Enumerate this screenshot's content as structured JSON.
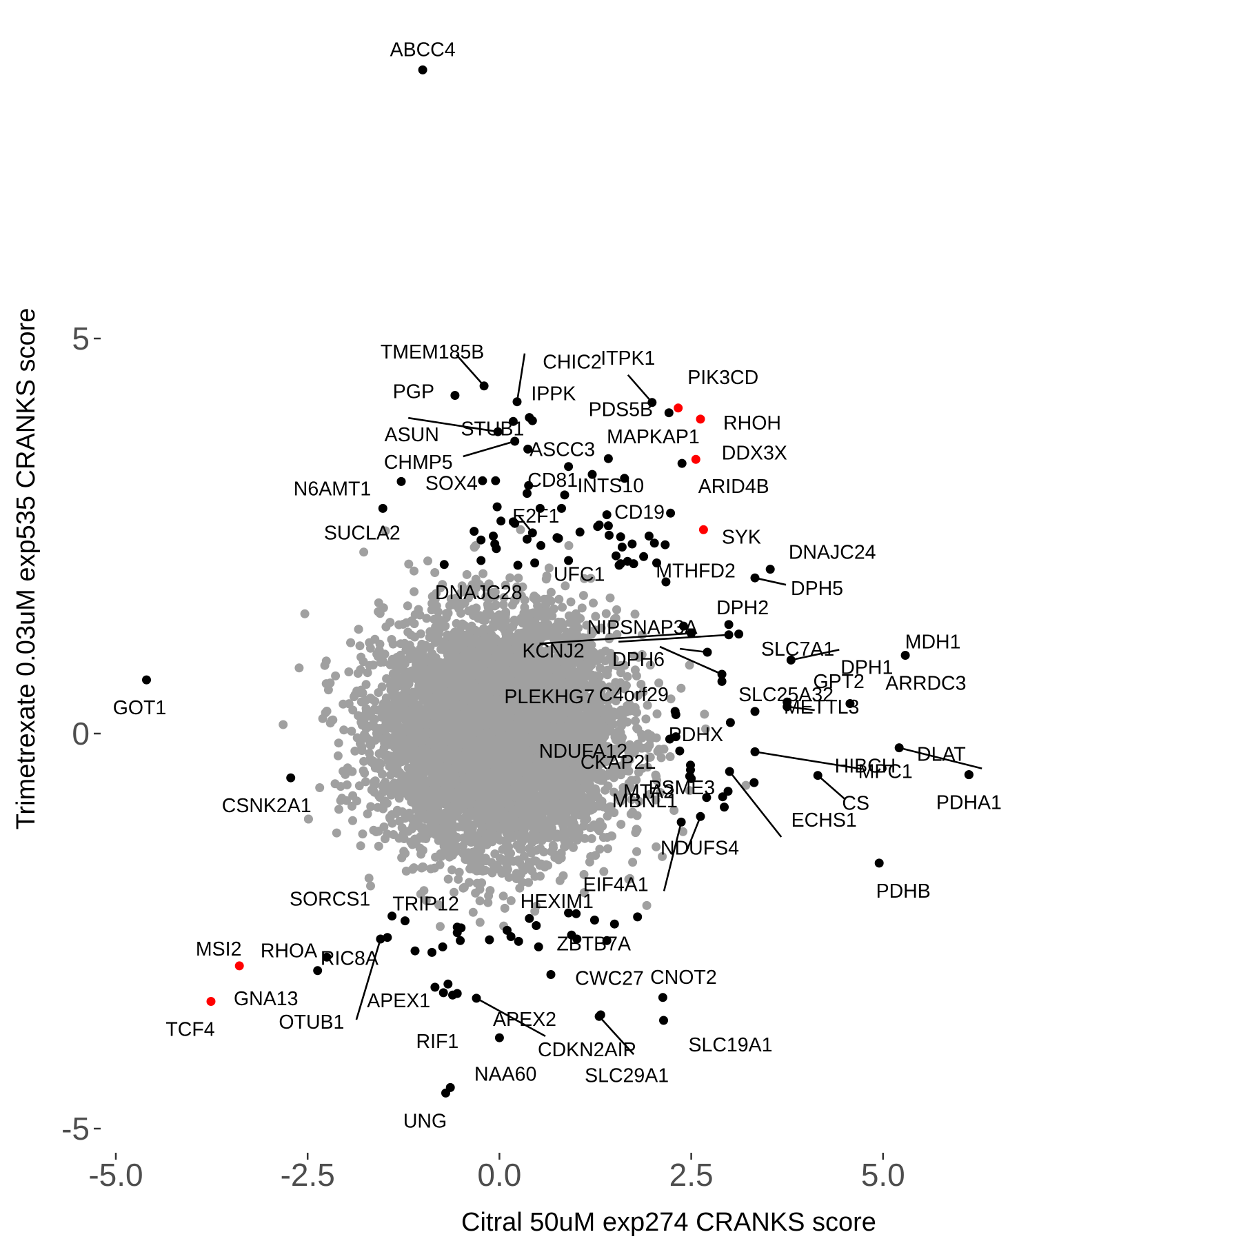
{
  "chart_data": {
    "type": "scatter",
    "xlabel": "Citral 50uM exp274 CRANKS score",
    "ylabel": "Trimetrexate 0.03uM exp535 CRANKS score",
    "xlim": [
      -5.0,
      6.2
    ],
    "ylim": [
      -5.0,
      8.4
    ],
    "x_ticks": [
      -5.0,
      -2.5,
      0.0,
      2.5,
      5.0
    ],
    "x_tick_labels": [
      "-5.0",
      "-2.5",
      "0.0",
      "2.5",
      "5.0"
    ],
    "y_ticks": [
      -5,
      0,
      5
    ],
    "y_tick_labels": [
      "-5",
      "0",
      "5"
    ],
    "grid": false,
    "colors": {
      "background_points": "#a0a0a0",
      "labeled_points": "#000000",
      "highlight_points": "#ff0000",
      "tick_text": "#4d4d4d"
    },
    "background_cloud": {
      "n_points": 7000,
      "center": [
        0.0,
        0.0
      ],
      "note_free": true
    },
    "series": [
      {
        "color": "#000000",
        "points": [
          {
            "label": "ABCC4",
            "x": -1.0,
            "y": 8.4
          },
          {
            "label": "TMEM185B",
            "x": -0.2,
            "y": 4.4
          },
          {
            "label": "CHIC2",
            "x": 0.23,
            "y": 4.2
          },
          {
            "label": "PGP",
            "x": -0.58,
            "y": 4.28
          },
          {
            "label": "IPPK",
            "x": 0.39,
            "y": 4.0
          },
          {
            "label": "ASUN",
            "x": -0.02,
            "y": 3.82
          },
          {
            "label": "STUB1",
            "x": 0.18,
            "y": 3.95
          },
          {
            "label": "CHMP5",
            "x": 0.2,
            "y": 3.7
          },
          {
            "label": "ITPK1",
            "x": 1.99,
            "y": 4.19
          },
          {
            "label": "PDS5B",
            "x": 2.21,
            "y": 4.06
          },
          {
            "label": "ASCC3",
            "x": 0.37,
            "y": 3.6
          },
          {
            "label": "MAPKAP1",
            "x": 1.42,
            "y": 3.48
          },
          {
            "label": "ARID4B",
            "x": 2.38,
            "y": 3.42
          },
          {
            "label": "N6AMT1",
            "x": -1.28,
            "y": 3.19
          },
          {
            "label": "SUCLA2",
            "x": -1.52,
            "y": 2.85
          },
          {
            "label": "CD81",
            "x": 0.38,
            "y": 3.14
          },
          {
            "label": "INTS10",
            "x": 1.63,
            "y": 3.23
          },
          {
            "label": "SOX4",
            "x": -0.22,
            "y": 3.2
          },
          {
            "label": "E2F1",
            "x": 0.43,
            "y": 2.54
          },
          {
            "label": "CD19",
            "x": 2.23,
            "y": 2.79
          },
          {
            "label": "UFC1",
            "x": 1.58,
            "y": 2.15
          },
          {
            "label": "MTHFD2",
            "x": 1.75,
            "y": 2.15
          },
          {
            "label": "DNAJC28",
            "x": -0.72,
            "y": 2.14
          },
          {
            "label": "DNAJC24",
            "x": 3.53,
            "y": 2.08
          },
          {
            "label": "DPH5",
            "x": 3.33,
            "y": 1.97
          },
          {
            "label": "DPH2",
            "x": 2.99,
            "y": 1.38
          },
          {
            "label": "NIPSNAP3A",
            "x": 3.12,
            "y": 1.26
          },
          {
            "label": "KCNJ2",
            "x": 2.5,
            "y": 1.27
          },
          {
            "label": "DPH6",
            "x": 2.71,
            "y": 1.03
          },
          {
            "label": "SLC7A1",
            "x": 2.99,
            "y": 1.25
          },
          {
            "label": "DPH1",
            "x": 3.8,
            "y": 0.93
          },
          {
            "label": "MDH1",
            "x": 5.29,
            "y": 0.99
          },
          {
            "label": "PLEKHG7",
            "x": 2.9,
            "y": 0.75
          },
          {
            "label": "C4orf29",
            "x": 2.29,
            "y": 0.28
          },
          {
            "label": "SLC25A32",
            "x": 3.33,
            "y": 0.28
          },
          {
            "label": "GPT2",
            "x": 3.75,
            "y": 0.4
          },
          {
            "label": "ARRDC3",
            "x": 4.57,
            "y": 0.38
          },
          {
            "label": "PDHX",
            "x": 3.01,
            "y": 0.14
          },
          {
            "label": "METTL3",
            "x": 3.75,
            "y": 0.34
          },
          {
            "label": "MPC1",
            "x": 5.21,
            "y": -0.18
          },
          {
            "label": "DLAT",
            "x": 6.12,
            "y": -0.52
          },
          {
            "label": "NDUFA12",
            "x": 2.35,
            "y": -0.22
          },
          {
            "label": "HIBCH",
            "x": 3.33,
            "y": -0.23
          },
          {
            "label": "CKAP2L",
            "x": 2.49,
            "y": -0.4
          },
          {
            "label": "MBNL1",
            "x": 2.48,
            "y": -0.54
          },
          {
            "label": "MTA2",
            "x": 2.98,
            "y": -0.73
          },
          {
            "label": "CS",
            "x": 4.15,
            "y": -0.53
          },
          {
            "label": "PSME3",
            "x": 3.32,
            "y": -0.62
          },
          {
            "label": "PDHA1",
            "x": 6.12,
            "y": -0.52
          },
          {
            "label": "NDUFS4",
            "x": 2.62,
            "y": -1.05
          },
          {
            "label": "ECHS1",
            "x": 3.0,
            "y": -0.48
          },
          {
            "label": "EIF4A1",
            "x": 2.37,
            "y": -1.12
          },
          {
            "label": "PDHB",
            "x": 4.95,
            "y": -1.64
          },
          {
            "label": "GOT1",
            "x": -4.6,
            "y": 0.68
          },
          {
            "label": "CSNK2A1",
            "x": -2.72,
            "y": -0.56
          },
          {
            "label": "SORCS1",
            "x": -1.4,
            "y": -2.31
          },
          {
            "label": "TRIP12",
            "x": -1.23,
            "y": -2.37
          },
          {
            "label": "HEXIM1",
            "x": 0.39,
            "y": -2.34
          },
          {
            "label": "RHOA",
            "x": -2.25,
            "y": -2.83
          },
          {
            "label": "GNA13",
            "x": -2.37,
            "y": -3.0
          },
          {
            "label": "RIC8A",
            "x": -1.46,
            "y": -2.58
          },
          {
            "label": "OTUB1",
            "x": -1.55,
            "y": -2.6
          },
          {
            "label": "ZBTB7A",
            "x": 0.51,
            "y": -2.7
          },
          {
            "label": "CWC27",
            "x": 0.67,
            "y": -3.05
          },
          {
            "label": "CNOT2",
            "x": 2.13,
            "y": -3.34
          },
          {
            "label": "APEX1",
            "x": -0.55,
            "y": -3.29
          },
          {
            "label": "APEX2",
            "x": -0.3,
            "y": -3.35
          },
          {
            "label": "RIF1",
            "x": 0.0,
            "y": -3.85
          },
          {
            "label": "CDKN2AIP",
            "x": 1.32,
            "y": -3.56
          },
          {
            "label": "SLC19A1",
            "x": 2.14,
            "y": -3.63
          },
          {
            "label": "SLC29A1",
            "x": 1.3,
            "y": -3.58
          },
          {
            "label": "NAA60",
            "x": -0.64,
            "y": -4.48
          },
          {
            "label": "UNG",
            "x": -0.7,
            "y": -4.55
          }
        ]
      },
      {
        "color": "#ff0000",
        "points": [
          {
            "label": "PIK3CD",
            "x": 2.33,
            "y": 4.12
          },
          {
            "label": "RHOH",
            "x": 2.62,
            "y": 3.98
          },
          {
            "label": "DDX3X",
            "x": 2.56,
            "y": 3.47
          },
          {
            "label": "SYK",
            "x": 2.66,
            "y": 2.58
          },
          {
            "label": "MSI2",
            "x": -3.39,
            "y": -2.94
          },
          {
            "label": "TCF4",
            "x": -3.76,
            "y": -3.39
          }
        ]
      }
    ],
    "unlabeled_black_points": [
      [
        0.43,
        3.96
      ],
      [
        -0.05,
        3.2
      ],
      [
        0.9,
        3.38
      ],
      [
        1.21,
        3.28
      ],
      [
        0.85,
        3.02
      ],
      [
        0.36,
        3.04
      ],
      [
        -0.03,
        2.87
      ],
      [
        0.02,
        2.69
      ],
      [
        0.53,
        2.85
      ],
      [
        0.18,
        2.68
      ],
      [
        0.2,
        2.66
      ],
      [
        0.81,
        2.85
      ],
      [
        1.4,
        2.77
      ],
      [
        1.3,
        2.64
      ],
      [
        1.42,
        2.63
      ],
      [
        1.28,
        2.62
      ],
      [
        1.05,
        2.55
      ],
      [
        0.75,
        2.48
      ],
      [
        0.36,
        2.46
      ],
      [
        0.54,
        2.38
      ],
      [
        0.77,
        2.47
      ],
      [
        1.58,
        2.49
      ],
      [
        1.43,
        2.51
      ],
      [
        1.6,
        2.36
      ],
      [
        1.73,
        2.4
      ],
      [
        1.95,
        2.5
      ],
      [
        2.02,
        2.41
      ],
      [
        2.16,
        2.39
      ],
      [
        -0.33,
        2.56
      ],
      [
        -0.08,
        2.5
      ],
      [
        -0.06,
        2.4
      ],
      [
        -0.24,
        2.45
      ],
      [
        -0.04,
        2.34
      ],
      [
        -0.24,
        2.19
      ],
      [
        0.24,
        2.13
      ],
      [
        0.46,
        2.16
      ],
      [
        0.9,
        2.19
      ],
      [
        1.52,
        2.25
      ],
      [
        1.67,
        2.18
      ],
      [
        1.88,
        2.24
      ],
      [
        1.56,
        2.13
      ],
      [
        2.05,
        2.16
      ],
      [
        2.17,
        1.92
      ],
      [
        2.4,
        1.36
      ],
      [
        2.9,
        0.66
      ],
      [
        2.3,
        0.24
      ],
      [
        2.22,
        -0.07
      ],
      [
        2.3,
        -0.04
      ],
      [
        2.49,
        -0.46
      ],
      [
        2.5,
        -0.57
      ],
      [
        2.7,
        -0.81
      ],
      [
        2.93,
        -0.93
      ],
      [
        2.91,
        -0.8
      ],
      [
        1.8,
        -2.32
      ],
      [
        1.5,
        -2.41
      ],
      [
        1.24,
        -2.36
      ],
      [
        0.9,
        -2.27
      ],
      [
        0.48,
        -2.43
      ],
      [
        0.1,
        -2.49
      ],
      [
        0.15,
        -2.57
      ],
      [
        0.25,
        -2.63
      ],
      [
        -0.13,
        -2.61
      ],
      [
        -0.5,
        -2.46
      ],
      [
        -0.55,
        -2.45
      ],
      [
        -0.74,
        -2.7
      ],
      [
        -0.88,
        -2.77
      ],
      [
        -1.1,
        -2.75
      ],
      [
        -0.67,
        -3.17
      ],
      [
        -0.61,
        -3.31
      ],
      [
        -0.73,
        -3.28
      ],
      [
        -0.84,
        -3.21
      ],
      [
        -0.55,
        -2.52
      ],
      [
        -0.51,
        -2.62
      ],
      [
        1.01,
        -2.6
      ],
      [
        1.4,
        -2.62
      ],
      [
        0.94,
        -2.55
      ],
      [
        1.0,
        -2.28
      ]
    ]
  }
}
